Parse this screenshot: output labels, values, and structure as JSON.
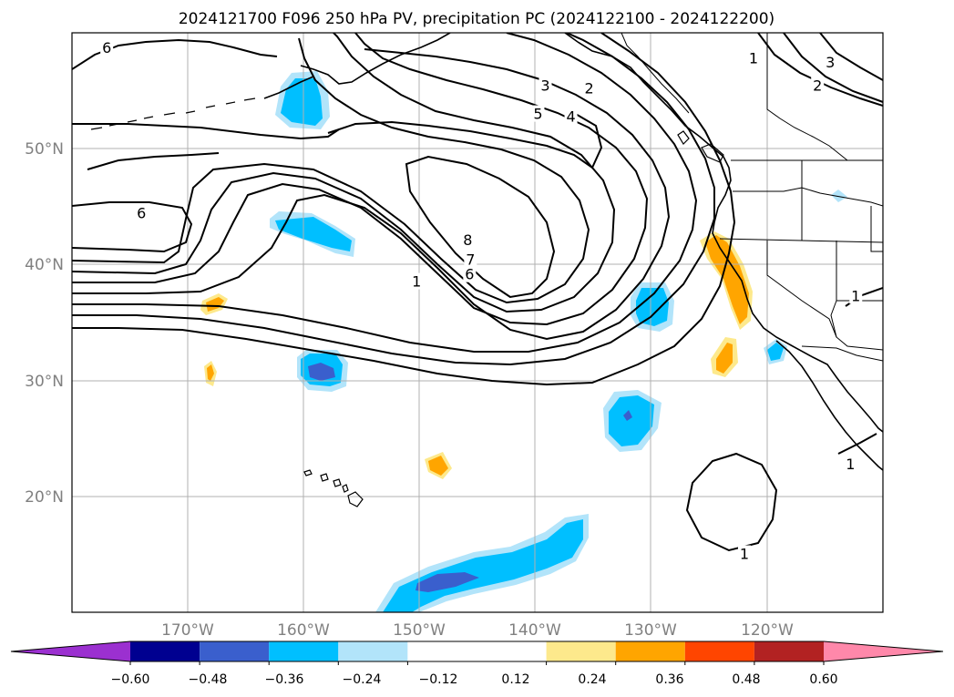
{
  "title": "2024121700 F096 250 hPa PV, precipitation PC (2024122100 - 2024122200)",
  "map": {
    "lon_range": [
      -180,
      -110
    ],
    "lat_range": [
      10,
      60
    ],
    "lon_ticks": [
      {
        "value": -170,
        "label": "170°W"
      },
      {
        "value": -160,
        "label": "160°W"
      },
      {
        "value": -150,
        "label": "150°W"
      },
      {
        "value": -140,
        "label": "140°W"
      },
      {
        "value": -130,
        "label": "130°W"
      },
      {
        "value": -120,
        "label": "120°W"
      }
    ],
    "lat_ticks": [
      {
        "value": 50,
        "label": "50°N"
      },
      {
        "value": 40,
        "label": "40°N"
      },
      {
        "value": 30,
        "label": "30°N"
      },
      {
        "value": 20,
        "label": "20°N"
      }
    ],
    "grid": true
  },
  "contour_labels": [
    {
      "text": "6",
      "lon": -176.997,
      "lat": 58.745
    },
    {
      "text": "6",
      "lon": -174.003,
      "lat": 44.49
    },
    {
      "text": "8",
      "lon": -145.84,
      "lat": 42.157
    },
    {
      "text": "7",
      "lon": -145.604,
      "lat": 40.461
    },
    {
      "text": "6",
      "lon": -145.683,
      "lat": 39.189
    },
    {
      "text": "1",
      "lon": -150.255,
      "lat": 38.57
    },
    {
      "text": "3",
      "lon": -139.14,
      "lat": 55.473
    },
    {
      "text": "2",
      "lon": -135.356,
      "lat": 55.261
    },
    {
      "text": "5",
      "lon": -139.771,
      "lat": 53.035
    },
    {
      "text": "4",
      "lon": -136.933,
      "lat": 52.824
    },
    {
      "text": "1",
      "lon": -121.167,
      "lat": 57.841
    },
    {
      "text": "2",
      "lon": -115.649,
      "lat": 55.473
    },
    {
      "text": "3",
      "lon": -114.546,
      "lat": 57.488
    },
    {
      "text": "1",
      "lon": -112.339,
      "lat": 37.333
    },
    {
      "text": "1",
      "lon": -112.809,
      "lat": 22.807
    },
    {
      "text": "1",
      "lon": -121.955,
      "lat": 15.066
    }
  ],
  "legend": {
    "colorbar": {
      "orientation": "horizontal",
      "extend": "both",
      "levels": [
        -0.72,
        -0.6,
        -0.48,
        -0.36,
        -0.24,
        -0.12,
        0.12,
        0.24,
        0.36,
        0.48,
        0.6,
        0.72
      ],
      "colors": [
        "#9b30d0",
        "#000090",
        "#3a5fcd",
        "#00bfff",
        "#b2e4fa",
        "#ffffff",
        "#fde98c",
        "#ffa500",
        "#ff4500",
        "#b22222",
        "#ff88aa"
      ],
      "tick_labels": [
        "−0.60",
        "−0.48",
        "−0.36",
        "−0.24",
        "−0.12",
        "0.12",
        "0.24",
        "0.36",
        "0.48",
        "0.60"
      ]
    }
  },
  "colors": {
    "land_border": "#000000",
    "grid": "#b0b0b0",
    "contour": "#000000"
  }
}
